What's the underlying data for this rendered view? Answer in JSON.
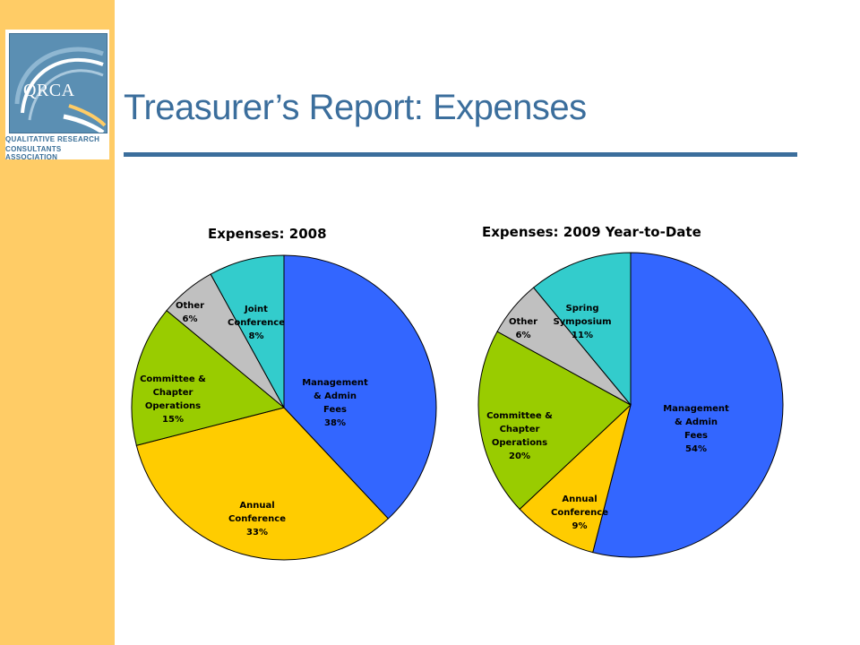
{
  "slide": {
    "title": "Treasurer’s Report:  Expenses"
  },
  "logo": {
    "abbr": "QRCA",
    "line1": "QUALITATIVE RESEARCH",
    "line2": "CONSULTANTS ASSOCIATION"
  },
  "colors": {
    "sidebar": "#FFCC66",
    "title": "#3B6E9C",
    "management": "#3366FF",
    "annual_conference": "#FFCC00",
    "committee": "#99CC00",
    "other": "#C0C0C0",
    "joint_spring": "#33CCCC"
  },
  "chart_data": [
    {
      "type": "pie",
      "title": "Expenses:  2008",
      "slices": [
        {
          "lines": [
            "Management",
            "& Admin",
            "Fees"
          ],
          "value": 38,
          "pct_label": "38%",
          "color": "#3366FF"
        },
        {
          "lines": [
            "Annual",
            "Conference"
          ],
          "value": 33,
          "pct_label": "33%",
          "color": "#FFCC00"
        },
        {
          "lines": [
            "Committee &",
            "Chapter",
            "Operations"
          ],
          "value": 15,
          "pct_label": "15%",
          "color": "#99CC00"
        },
        {
          "lines": [
            "Other"
          ],
          "value": 6,
          "pct_label": "6%",
          "color": "#C0C0C0"
        },
        {
          "lines": [
            "Joint",
            "Conference"
          ],
          "value": 8,
          "pct_label": "8%",
          "color": "#33CCCC"
        }
      ]
    },
    {
      "type": "pie",
      "title": "Expenses: 2009 Year-to-Date",
      "slices": [
        {
          "lines": [
            "Management",
            "& Admin",
            "Fees"
          ],
          "value": 54,
          "pct_label": "54%",
          "color": "#3366FF"
        },
        {
          "lines": [
            "Annual",
            "Conference"
          ],
          "value": 9,
          "pct_label": "9%",
          "color": "#FFCC00"
        },
        {
          "lines": [
            "Committee &",
            "Chapter",
            "Operations"
          ],
          "value": 20,
          "pct_label": "20%",
          "color": "#99CC00"
        },
        {
          "lines": [
            "Other"
          ],
          "value": 6,
          "pct_label": "6%",
          "color": "#C0C0C0"
        },
        {
          "lines": [
            "Spring",
            "Symposium"
          ],
          "value": 11,
          "pct_label": "11%",
          "color": "#33CCCC"
        }
      ]
    }
  ]
}
